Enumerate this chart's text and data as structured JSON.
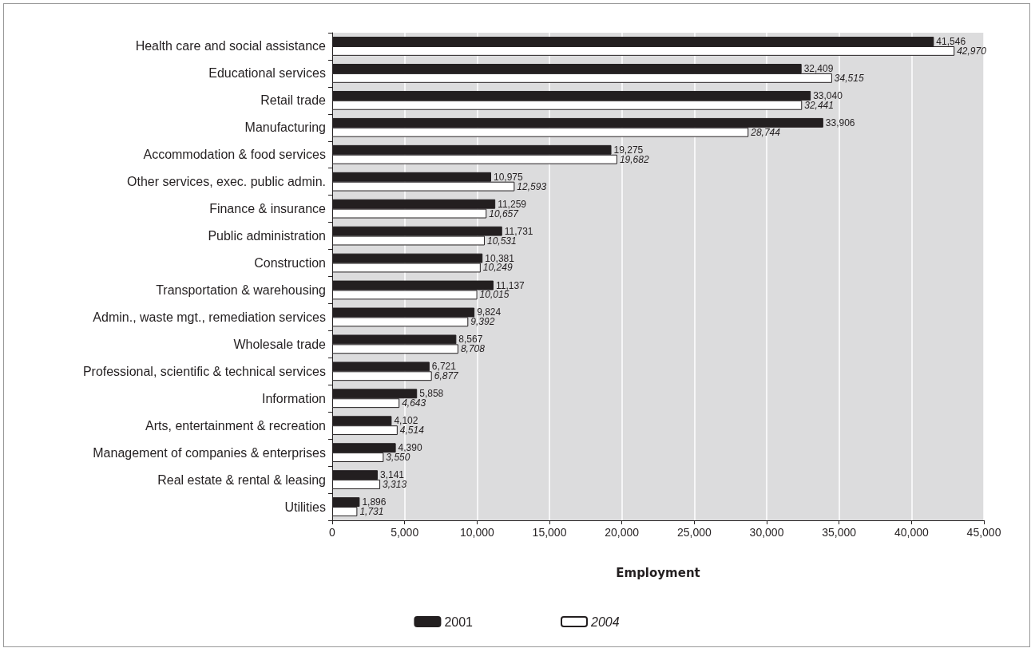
{
  "chart_data": {
    "type": "bar",
    "orientation": "horizontal",
    "xlabel": "Employment",
    "categories": [
      "Health care and social assistance",
      "Educational services",
      "Retail trade",
      "Manufacturing",
      "Accommodation & food services",
      "Other services, exec. public admin.",
      "Finance & insurance",
      "Public administration",
      "Construction",
      "Transportation & warehousing",
      "Admin., waste mgt., remediation services",
      "Wholesale trade",
      "Professional, scientific & technical services",
      "Information",
      "Arts, entertainment & recreation",
      "Management of companies & enterprises",
      "Real estate & rental & leasing",
      "Utilities"
    ],
    "series": [
      {
        "name": "2001",
        "color": "#231f20",
        "values": [
          41546,
          32409,
          33040,
          33906,
          19275,
          10975,
          11259,
          11731,
          10381,
          11137,
          9824,
          8567,
          6721,
          5858,
          4102,
          4390,
          3141,
          1896
        ],
        "value_labels": [
          "41,546",
          "32,409",
          "33,040",
          "33,906",
          "19,275",
          "10,975",
          "11,259",
          "11,731",
          "10,381",
          "11,137",
          "9,824",
          "8,567",
          "6,721",
          "5,858",
          "4,102",
          "4,390",
          "3,141",
          "1,896"
        ]
      },
      {
        "name": "2004",
        "color": "#ffffff",
        "values": [
          42970,
          34515,
          32441,
          28744,
          19682,
          12593,
          10657,
          10531,
          10249,
          10015,
          9392,
          8708,
          6877,
          4643,
          4514,
          3550,
          3313,
          1731
        ],
        "value_labels": [
          "42,970",
          "34,515",
          "32,441",
          "28,744",
          "19,682",
          "12,593",
          "10,657",
          "10,531",
          "10,249",
          "10,015",
          "9,392",
          "8,708",
          "6,877",
          "4,643",
          "4,514",
          "3,550",
          "3,313",
          "1,731"
        ]
      }
    ],
    "xlim": [
      0,
      45000
    ],
    "xticks": [
      0,
      {
        "value": 5000,
        "label": "5,000"
      },
      {
        "value": 10000,
        "label": "10,000"
      },
      {
        "value": 15000,
        "label": "15,000"
      },
      {
        "value": 20000,
        "label": "20,000"
      },
      {
        "value": 25000,
        "label": "25,000"
      },
      {
        "value": 30000,
        "label": "30,000"
      },
      {
        "value": 35000,
        "label": "35,000"
      },
      {
        "value": 40000,
        "label": "40,000"
      },
      {
        "value": 45000,
        "label": "45,000"
      }
    ],
    "grid": "x",
    "legend": "bottom"
  }
}
